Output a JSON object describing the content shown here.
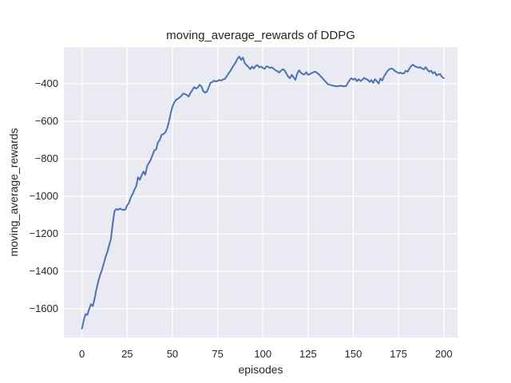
{
  "chart_data": {
    "type": "line",
    "title": "moving_average_rewards of DDPG",
    "xlabel": "episodes",
    "ylabel": "moving_average_rewards",
    "xlim": [
      -10,
      207.6
    ],
    "ylim": [
      -1753,
      -204
    ],
    "x_ticks": [
      0,
      25,
      50,
      75,
      100,
      125,
      150,
      175,
      200
    ],
    "y_ticks": [
      -400,
      -600,
      -800,
      -1000,
      -1200,
      -1400,
      -1600
    ],
    "grid": true,
    "legend": "none",
    "colors": {
      "figure_background": "#FFFFFF",
      "axes_background": "#EAEAF2",
      "grid_color": "#FFFFFF",
      "line_color": "#4C72B0",
      "text_color": "#262626"
    },
    "series": [
      {
        "name": "moving_average_rewards",
        "x": {
          "start": 0,
          "step": 1
        },
        "values": [
          -1705,
          -1660,
          -1628,
          -1632,
          -1600,
          -1575,
          -1585,
          -1545,
          -1495,
          -1455,
          -1420,
          -1395,
          -1360,
          -1325,
          -1298,
          -1262,
          -1228,
          -1145,
          -1078,
          -1068,
          -1072,
          -1065,
          -1070,
          -1073,
          -1070,
          -1048,
          -1035,
          -1005,
          -988,
          -965,
          -945,
          -898,
          -912,
          -888,
          -868,
          -885,
          -840,
          -822,
          -805,
          -780,
          -755,
          -750,
          -712,
          -700,
          -672,
          -668,
          -660,
          -640,
          -605,
          -560,
          -522,
          -500,
          -485,
          -480,
          -472,
          -464,
          -452,
          -455,
          -460,
          -468,
          -448,
          -434,
          -418,
          -425,
          -420,
          -405,
          -413,
          -438,
          -447,
          -442,
          -421,
          -395,
          -391,
          -383,
          -387,
          -385,
          -379,
          -383,
          -376,
          -374,
          -360,
          -345,
          -332,
          -315,
          -300,
          -285,
          -265,
          -255,
          -272,
          -260,
          -290,
          -300,
          -310,
          -322,
          -308,
          -318,
          -305,
          -300,
          -312,
          -308,
          -315,
          -320,
          -306,
          -310,
          -315,
          -312,
          -320,
          -328,
          -332,
          -340,
          -330,
          -322,
          -328,
          -345,
          -362,
          -370,
          -352,
          -365,
          -378,
          -345,
          -328,
          -340,
          -348,
          -350,
          -338,
          -352,
          -348,
          -342,
          -338,
          -335,
          -342,
          -350,
          -360,
          -370,
          -382,
          -392,
          -402,
          -405,
          -408,
          -410,
          -412,
          -413,
          -412,
          -410,
          -412,
          -413,
          -412,
          -395,
          -380,
          -370,
          -378,
          -372,
          -386,
          -375,
          -385,
          -378,
          -368,
          -375,
          -378,
          -390,
          -380,
          -395,
          -375,
          -386,
          -399,
          -372,
          -382,
          -360,
          -345,
          -330,
          -322,
          -318,
          -322,
          -332,
          -336,
          -344,
          -340,
          -345,
          -344,
          -330,
          -336,
          -318,
          -305,
          -298,
          -306,
          -310,
          -314,
          -311,
          -318,
          -323,
          -311,
          -325,
          -335,
          -330,
          -344,
          -337,
          -355,
          -350,
          -348,
          -363,
          -370
        ]
      }
    ]
  }
}
